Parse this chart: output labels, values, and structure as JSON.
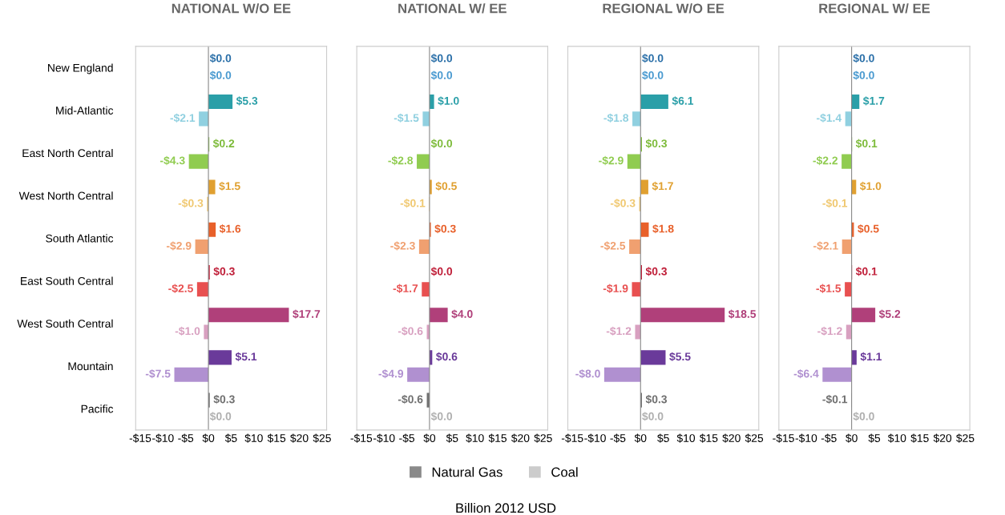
{
  "chart_data": [
    {
      "type": "bar",
      "orientation": "horizontal",
      "title": "NATIONAL W/O EE",
      "categories": [
        "New England",
        "Mid-Atlantic",
        "East North Central",
        "West North Central",
        "South Atlantic",
        "East South Central",
        "West South Central",
        "Mountain",
        "Pacific"
      ],
      "xlim": [
        -16,
        26
      ],
      "xticks": [
        {
          "value": -15,
          "label": "-$15"
        },
        {
          "value": -10,
          "label": "-$10"
        },
        {
          "value": -5,
          "label": "-$5"
        },
        {
          "value": 0,
          "label": "$0"
        },
        {
          "value": 5,
          "label": "$5"
        },
        {
          "value": 10,
          "label": "$10"
        },
        {
          "value": 15,
          "label": "$15"
        },
        {
          "value": 20,
          "label": "$20"
        },
        {
          "value": 25,
          "label": "$25"
        }
      ],
      "series": [
        {
          "colors": [
            "#2a6fa8",
            "#2a9fa8",
            "#7dbb3a",
            "#e0a030",
            "#e8602a",
            "#c0203a",
            "#b0407a",
            "#6a3a9a",
            "#707070"
          ],
          "values": [
            0.0,
            5.3,
            0.2,
            1.5,
            1.6,
            0.3,
            17.7,
            5.1,
            0.3
          ],
          "value_labels": [
            "$0.0",
            "$5.3",
            "$0.2",
            "$1.5",
            "$1.6",
            "$0.3",
            "$17.7",
            "$5.1",
            "$0.3"
          ]
        },
        {
          "colors": [
            "#4a9ad0",
            "#90d0e0",
            "#90cc50",
            "#f0c870",
            "#f0a070",
            "#e85050",
            "#d8a0c0",
            "#b090d0",
            "#b0b0b0"
          ],
          "values": [
            0.0,
            -2.1,
            -4.3,
            -0.3,
            -2.9,
            -2.5,
            -1.0,
            -7.5,
            0.0
          ],
          "value_labels": [
            "$0.0",
            "-$2.1",
            "-$4.3",
            "-$0.3",
            "-$2.9",
            "-$2.5",
            "-$1.0",
            "-$7.5",
            "$0.0"
          ]
        }
      ]
    },
    {
      "type": "bar",
      "orientation": "horizontal",
      "title": "NATIONAL W/ EE",
      "xlabel": "Billion 2012 USD",
      "legend": "bottom",
      "categories": [
        null,
        null,
        null,
        null,
        null,
        null,
        null,
        null,
        null
      ],
      "xlim": [
        -16,
        26
      ],
      "xticks": [
        {
          "value": -15,
          "label": "-$15"
        },
        {
          "value": -10,
          "label": "-$10"
        },
        {
          "value": -5,
          "label": "-$5"
        },
        {
          "value": 0,
          "label": "$0"
        },
        {
          "value": 5,
          "label": "$5"
        },
        {
          "value": 10,
          "label": "$10"
        },
        {
          "value": 15,
          "label": "$15"
        },
        {
          "value": 20,
          "label": "$20"
        },
        {
          "value": 25,
          "label": "$25"
        }
      ],
      "series": [
        {
          "name": "Natural Gas",
          "color": "#8a8a8a",
          "colors": [
            "#2a6fa8",
            "#2a9fa8",
            "#7dbb3a",
            "#e0a030",
            "#e8602a",
            "#c0203a",
            "#b0407a",
            "#6a3a9a",
            "#707070"
          ],
          "values": [
            0.0,
            1.0,
            0.0,
            0.5,
            0.3,
            0.0,
            4.0,
            0.6,
            -0.6
          ],
          "value_labels": [
            "$0.0",
            "$1.0",
            "$0.0",
            "$0.5",
            "$0.3",
            "$0.0",
            "$4.0",
            "$0.6",
            "-$0.6"
          ]
        },
        {
          "name": "Coal",
          "color": "#cccccc",
          "colors": [
            "#4a9ad0",
            "#90d0e0",
            "#90cc50",
            "#f0c870",
            "#f0a070",
            "#e85050",
            "#d8a0c0",
            "#b090d0",
            "#b0b0b0"
          ],
          "values": [
            0.0,
            -1.5,
            -2.8,
            -0.1,
            -2.3,
            -1.7,
            -0.6,
            -4.9,
            0.0
          ],
          "value_labels": [
            "$0.0",
            "-$1.5",
            "-$2.8",
            "-$0.1",
            "-$2.3",
            "-$1.7",
            "-$0.6",
            "-$4.9",
            "$0.0"
          ]
        }
      ]
    },
    {
      "type": "bar",
      "orientation": "horizontal",
      "title": "REGIONAL W/O EE",
      "categories": [
        null,
        null,
        null,
        null,
        null,
        null,
        null,
        null,
        null
      ],
      "xlim": [
        -16,
        26
      ],
      "xticks": [
        {
          "value": -15,
          "label": "-$15"
        },
        {
          "value": -10,
          "label": "-$10"
        },
        {
          "value": -5,
          "label": "-$5"
        },
        {
          "value": 0,
          "label": "$0"
        },
        {
          "value": 5,
          "label": "$5"
        },
        {
          "value": 10,
          "label": "$10"
        },
        {
          "value": 15,
          "label": "$15"
        },
        {
          "value": 20,
          "label": "$20"
        },
        {
          "value": 25,
          "label": "$25"
        }
      ],
      "series": [
        {
          "colors": [
            "#2a6fa8",
            "#2a9fa8",
            "#7dbb3a",
            "#e0a030",
            "#e8602a",
            "#c0203a",
            "#b0407a",
            "#6a3a9a",
            "#707070"
          ],
          "values": [
            0.0,
            6.1,
            0.3,
            1.7,
            1.8,
            0.3,
            18.5,
            5.5,
            0.3
          ],
          "value_labels": [
            "$0.0",
            "$6.1",
            "$0.3",
            "$1.7",
            "$1.8",
            "$0.3",
            "$18.5",
            "$5.5",
            "$0.3"
          ]
        },
        {
          "colors": [
            "#4a9ad0",
            "#90d0e0",
            "#90cc50",
            "#f0c870",
            "#f0a070",
            "#e85050",
            "#d8a0c0",
            "#b090d0",
            "#b0b0b0"
          ],
          "values": [
            0.0,
            -1.8,
            -2.9,
            -0.3,
            -2.5,
            -1.9,
            -1.2,
            -8.0,
            0.0
          ],
          "value_labels": [
            "$0.0",
            "-$1.8",
            "-$2.9",
            "-$0.3",
            "-$2.5",
            "-$1.9",
            "-$1.2",
            "-$8.0",
            "$0.0"
          ]
        }
      ]
    },
    {
      "type": "bar",
      "orientation": "horizontal",
      "title": "REGIONAL W/ EE",
      "categories": [
        null,
        null,
        null,
        null,
        null,
        null,
        null,
        null,
        null
      ],
      "xlim": [
        -16,
        26
      ],
      "xticks": [
        {
          "value": -15,
          "label": "-$15"
        },
        {
          "value": -10,
          "label": "-$10"
        },
        {
          "value": -5,
          "label": "-$5"
        },
        {
          "value": 0,
          "label": "$0"
        },
        {
          "value": 5,
          "label": "$5"
        },
        {
          "value": 10,
          "label": "$10"
        },
        {
          "value": 15,
          "label": "$15"
        },
        {
          "value": 20,
          "label": "$20"
        },
        {
          "value": 25,
          "label": "$25"
        }
      ],
      "series": [
        {
          "colors": [
            "#2a6fa8",
            "#2a9fa8",
            "#7dbb3a",
            "#e0a030",
            "#e8602a",
            "#c0203a",
            "#b0407a",
            "#6a3a9a",
            "#707070"
          ],
          "values": [
            0.0,
            1.7,
            0.1,
            1.0,
            0.5,
            0.1,
            5.2,
            1.1,
            -0.1
          ],
          "value_labels": [
            "$0.0",
            "$1.7",
            "$0.1",
            "$1.0",
            "$0.5",
            "$0.1",
            "$5.2",
            "$1.1",
            "-$0.1"
          ]
        },
        {
          "colors": [
            "#4a9ad0",
            "#90d0e0",
            "#90cc50",
            "#f0c870",
            "#f0a070",
            "#e85050",
            "#d8a0c0",
            "#b090d0",
            "#b0b0b0"
          ],
          "values": [
            0.0,
            -1.4,
            -2.2,
            -0.1,
            -2.1,
            -1.5,
            -1.2,
            -6.4,
            0.0
          ],
          "value_labels": [
            "$0.0",
            "-$1.4",
            "-$2.2",
            "-$0.1",
            "-$2.1",
            "-$1.5",
            "-$1.2",
            "-$6.4",
            "$0.0"
          ]
        }
      ]
    }
  ]
}
